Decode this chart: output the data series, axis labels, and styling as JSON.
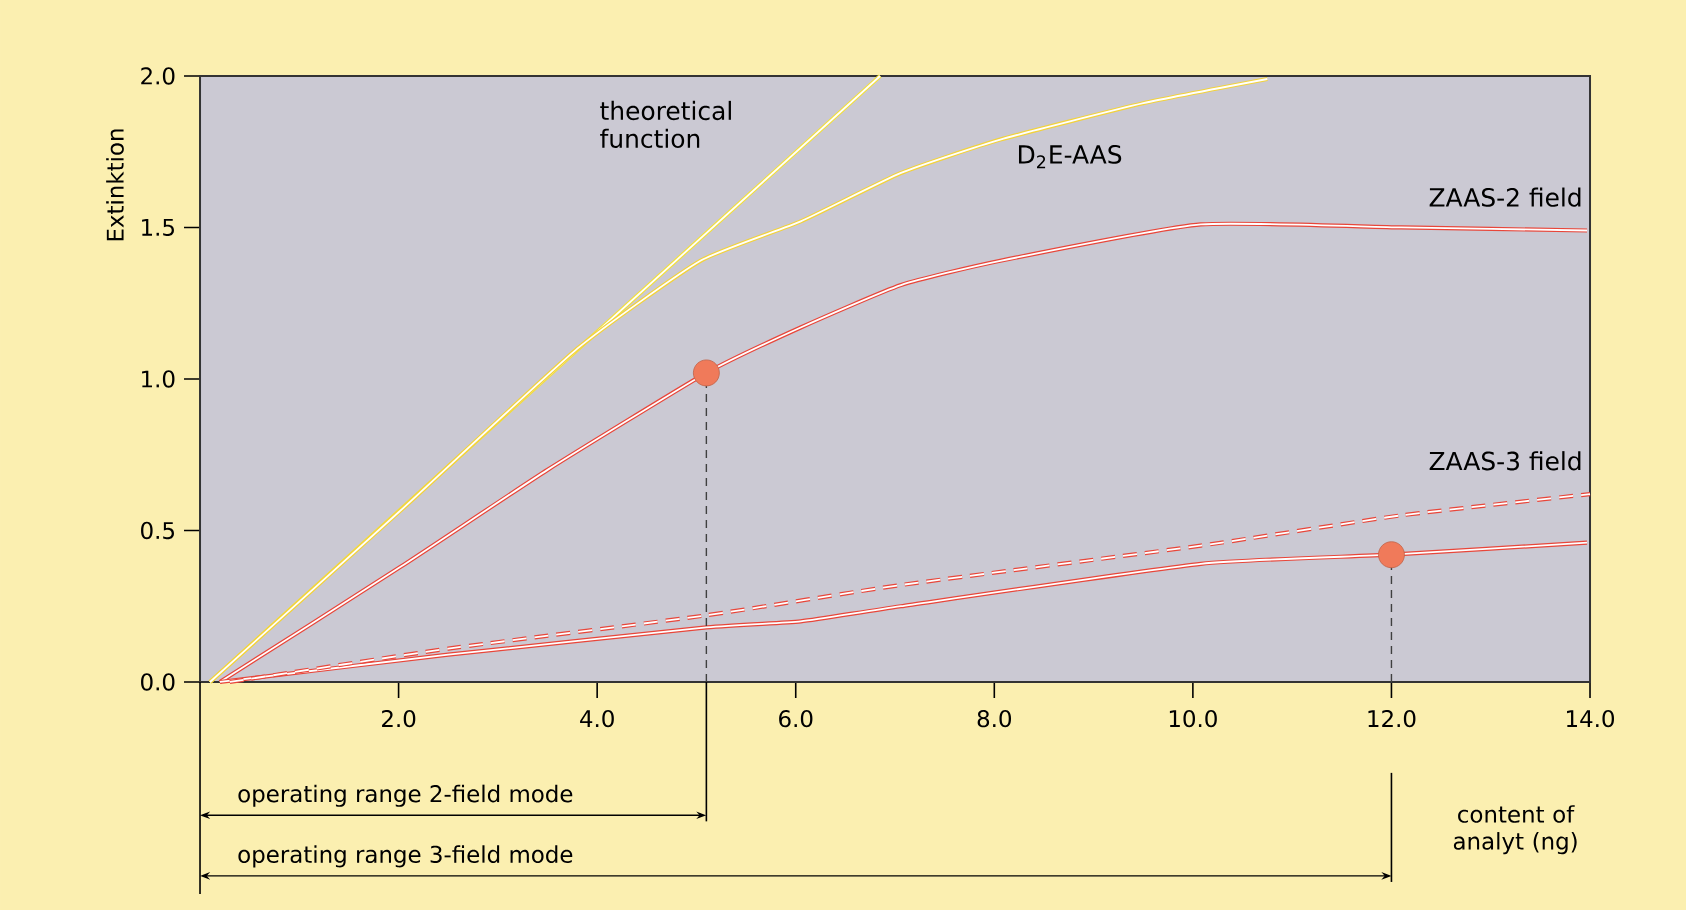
{
  "chart_data": {
    "type": "line",
    "xlabel": "content of analyt (ng)",
    "ylabel": "Extinktion",
    "xlim": [
      0,
      14
    ],
    "ylim": [
      0,
      2
    ],
    "xticks": [
      {
        "value": 2,
        "label": "2.0"
      },
      {
        "value": 4,
        "label": "4.0"
      },
      {
        "value": 6,
        "label": "6.0"
      },
      {
        "value": 8,
        "label": "8.0"
      },
      {
        "value": 10,
        "label": "10.0"
      },
      {
        "value": 12,
        "label": "12.0"
      },
      {
        "value": 14,
        "label": "14.0"
      }
    ],
    "yticks": [
      {
        "value": 0,
        "label": "0.0"
      },
      {
        "value": 0.5,
        "label": "0.5"
      },
      {
        "value": 1,
        "label": "1.0"
      },
      {
        "value": 1.5,
        "label": "1.5"
      },
      {
        "value": 2,
        "label": "2.0"
      }
    ],
    "grid": false,
    "marker": "none",
    "line_style": "solid",
    "series": [
      {
        "name": "theoretical function",
        "color": "#f2df3c",
        "x": [
          0.1,
          6.85
        ],
        "values": [
          0,
          2.0
        ]
      },
      {
        "name": "D$_{2}$E-AAS",
        "color": "#f2d23c",
        "x": [
          0.1,
          2.0,
          3.8,
          5.04,
          6.05,
          7.06,
          8.06,
          9.5,
          10.75
        ],
        "values": [
          0,
          0.56,
          1.1,
          1.39,
          1.52,
          1.68,
          1.79,
          1.91,
          1.99
        ]
      },
      {
        "name": "ZAAS-2 field",
        "color": "#e8463a",
        "x": [
          0.2,
          2.02,
          3.5,
          5.1,
          6.05,
          7.06,
          8.06,
          10.08,
          12.1,
          13.97
        ],
        "values": [
          0,
          0.38,
          0.7,
          1.02,
          1.17,
          1.31,
          1.39,
          1.51,
          1.5,
          1.49
        ]
      },
      {
        "name": "ZAAS-3 field",
        "color": "#e8463a",
        "x": [
          0.2,
          2.5,
          5.1,
          6.05,
          7.06,
          10.08,
          12.0,
          13.97
        ],
        "values": [
          0,
          0.09,
          0.18,
          0.2,
          0.25,
          0.39,
          0.42,
          0.46
        ]
      },
      {
        "color": "#e8463a",
        "line_style": "dashed",
        "x": [
          0.3,
          2.5,
          5.1,
          7.06,
          10.08,
          12.1,
          14.0
        ],
        "values": [
          0,
          0.11,
          0.22,
          0.32,
          0.45,
          0.55,
          0.62
        ]
      },
      {
        "type": "lollipop",
        "marker": "circle",
        "color": "#f07a5a",
        "x": [
          5.1,
          12.0
        ],
        "values": [
          1.02,
          0.42
        ]
      }
    ],
    "annotations": [
      "operating range 2-field mode",
      "operating range 3-field mode"
    ]
  }
}
